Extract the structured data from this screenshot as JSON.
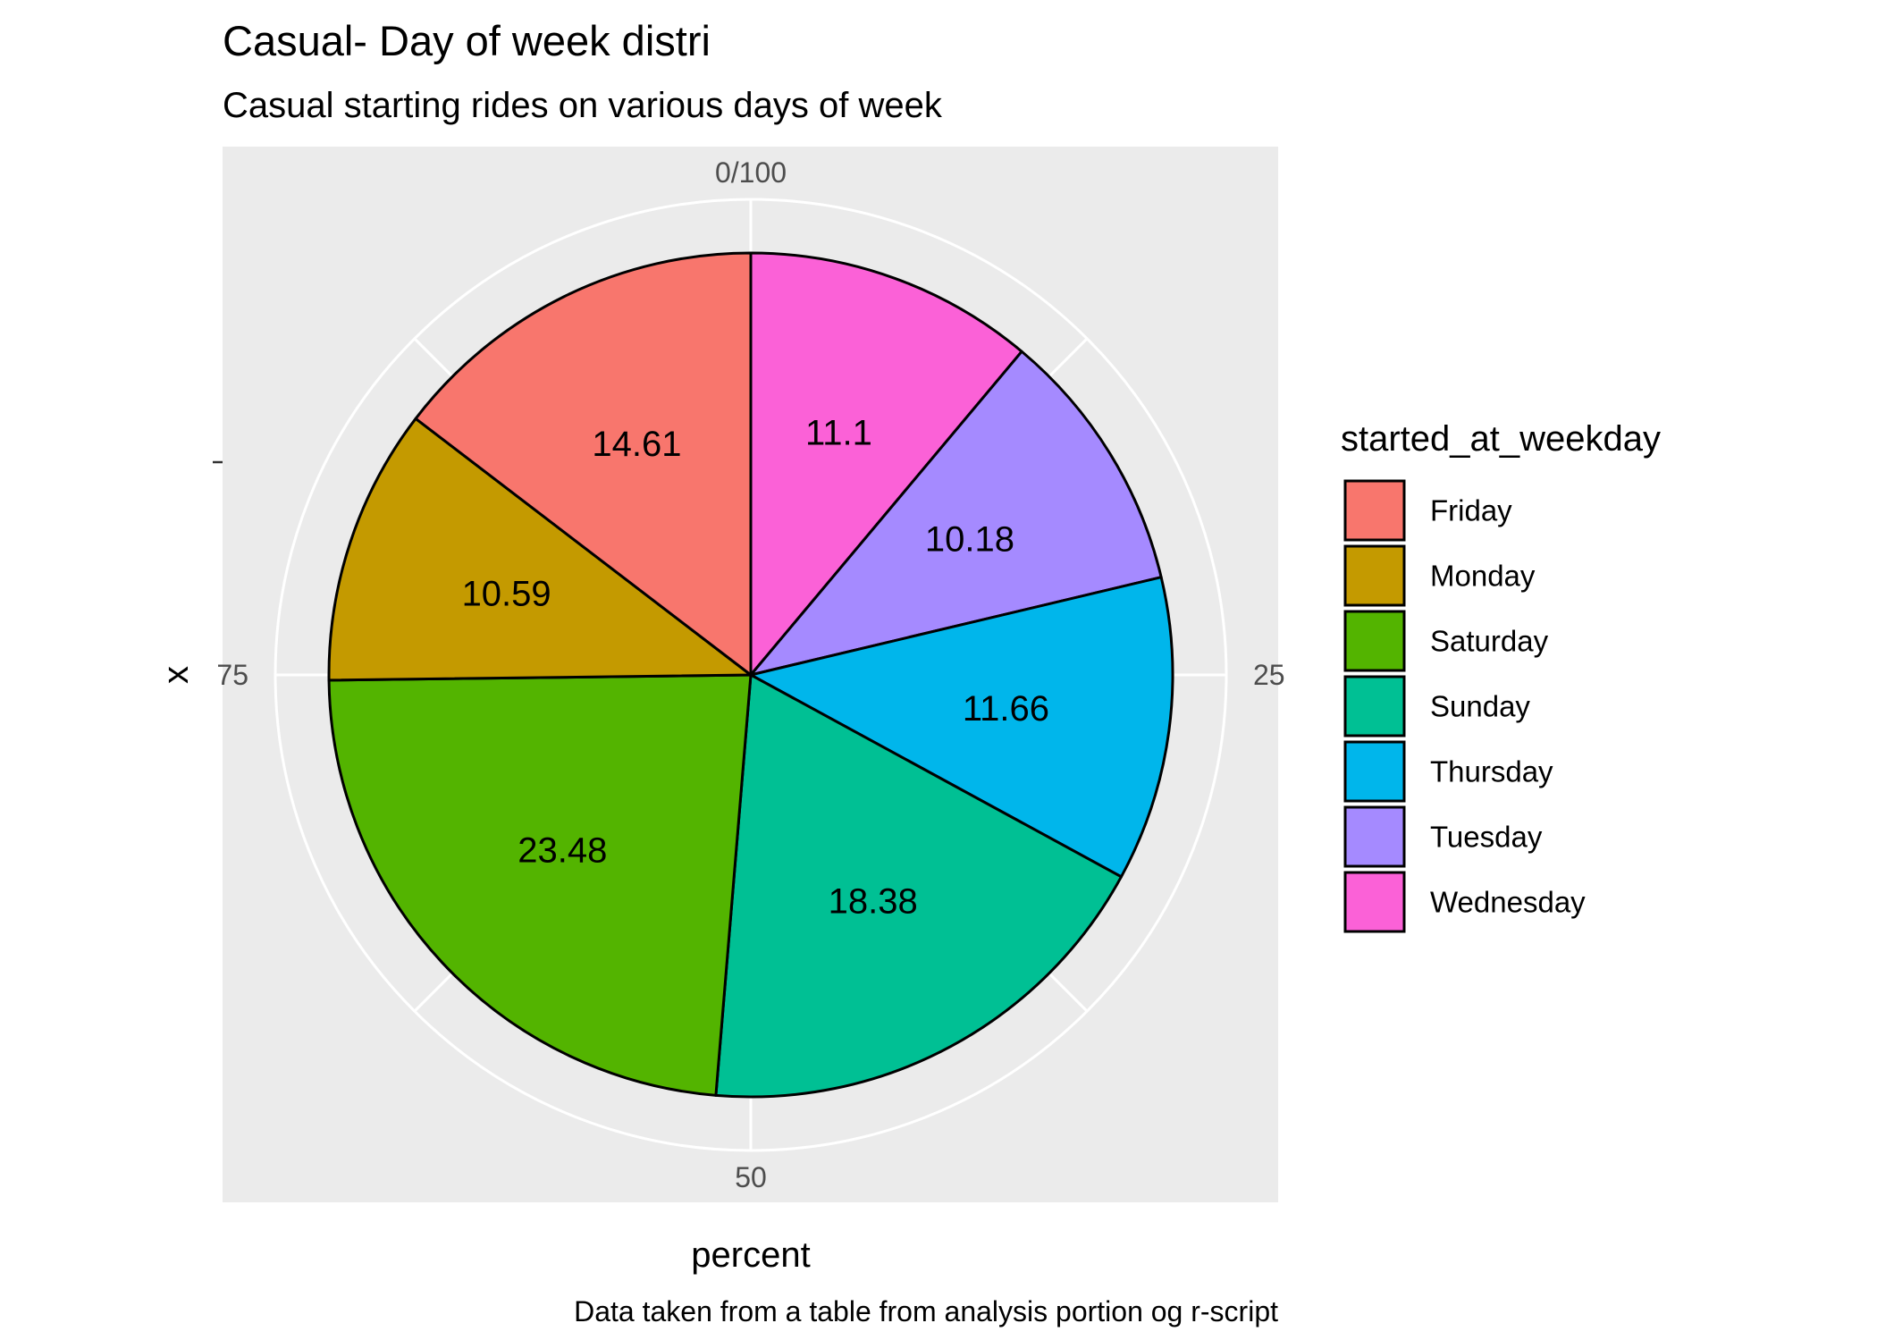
{
  "chart_data": {
    "type": "pie",
    "title": "Casual- Day of week distri",
    "subtitle": "Casual starting rides on various days of week",
    "xlabel": "percent",
    "ylabel": "x",
    "caption": "Data taken from a table from analysis portion og r-script",
    "theta_ticks": [
      {
        "value": 0,
        "label": "0/100"
      },
      {
        "value": 25,
        "label": "25"
      },
      {
        "value": 50,
        "label": "50"
      },
      {
        "value": 75,
        "label": "75"
      }
    ],
    "total": 100,
    "slices": [
      {
        "category": "Wednesday",
        "value": 11.1,
        "label": "11.1",
        "color": "#FB61D7"
      },
      {
        "category": "Tuesday",
        "value": 10.18,
        "label": "10.18",
        "color": "#A58AFF"
      },
      {
        "category": "Thursday",
        "value": 11.66,
        "label": "11.66",
        "color": "#00B6EB"
      },
      {
        "category": "Sunday",
        "value": 18.38,
        "label": "18.38",
        "color": "#00C094"
      },
      {
        "category": "Saturday",
        "value": 23.48,
        "label": "23.48",
        "color": "#53B400"
      },
      {
        "category": "Monday",
        "value": 10.59,
        "label": "10.59",
        "color": "#C49A00"
      },
      {
        "category": "Friday",
        "value": 14.61,
        "label": "14.61",
        "color": "#F8766D"
      }
    ],
    "legend": {
      "title": "started_at_weekday",
      "placement": "right",
      "entries": [
        {
          "label": "Friday",
          "color": "#F8766D"
        },
        {
          "label": "Monday",
          "color": "#C49A00"
        },
        {
          "label": "Saturday",
          "color": "#53B400"
        },
        {
          "label": "Sunday",
          "color": "#00C094"
        },
        {
          "label": "Thursday",
          "color": "#00B6EB"
        },
        {
          "label": "Tuesday",
          "color": "#A58AFF"
        },
        {
          "label": "Wednesday",
          "color": "#FB61D7"
        }
      ]
    },
    "panel_background": "#EBEBEB",
    "grid": true
  }
}
